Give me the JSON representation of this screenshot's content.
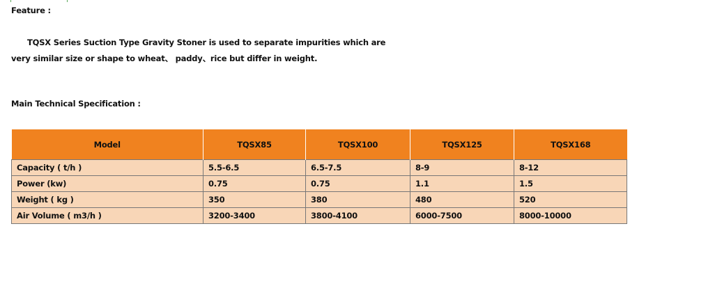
{
  "feature_heading": "Feature :",
  "description_line1": "TQSX Series Suction Type Gravity Stoner is used to separate impurities which are",
  "description_line2": "very similar size or shape to wheat、 paddy、rice but differ in weight.",
  "spec_heading": "Main Technical Specification :",
  "colors": {
    "header": "#f0821f",
    "cell": "#f8d6b7"
  },
  "table": {
    "headers": [
      "Model",
      "TQSX85",
      "TQSX100",
      "TQSX125",
      "TQSX168"
    ],
    "rows": [
      [
        "Capacity ( t/h )",
        "5.5-6.5",
        "6.5-7.5",
        "8-9",
        "8-12"
      ],
      [
        "Power (kw)",
        "0.75",
        "0.75",
        "1.1",
        "1.5"
      ],
      [
        "Weight ( kg )",
        "350",
        "380",
        "480",
        "520"
      ],
      [
        "Air Volume ( m3/h )",
        "3200-3400",
        "3800-4100",
        "6000-7500",
        "8000-10000"
      ]
    ]
  }
}
